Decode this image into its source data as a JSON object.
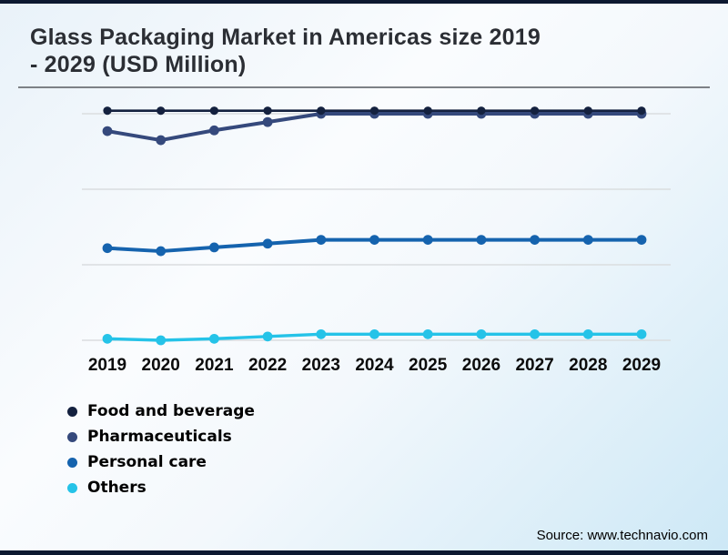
{
  "page": {
    "title_lines": [
      "Glass Packaging Market in Americas size 2019",
      "- 2029 (USD Million)"
    ],
    "source": "Source: www.technavio.com"
  },
  "legend": {
    "items": [
      {
        "label": "Food and beverage",
        "color": "#14213f"
      },
      {
        "label": "Pharmaceuticals",
        "color": "#35497c"
      },
      {
        "label": "Personal care",
        "color": "#1563ae"
      },
      {
        "label": "Others",
        "color": "#25c3e8"
      }
    ]
  },
  "chart_data": {
    "type": "line",
    "title": "Glass Packaging Market in Americas size 2019 - 2029 (USD Million)",
    "categories": [
      "2019",
      "2020",
      "2021",
      "2022",
      "2023",
      "2024",
      "2025",
      "2026",
      "2027",
      "2028",
      "2029"
    ],
    "series": [
      {
        "name": "Food and beverage",
        "color": "#14213f",
        "values": [
          3.04,
          3.04,
          3.04,
          3.04,
          3.04,
          3.04,
          3.04,
          3.04,
          3.04,
          3.04,
          3.04
        ]
      },
      {
        "name": "Pharmaceuticals",
        "color": "#35497c",
        "values": [
          2.77,
          2.65,
          2.78,
          2.89,
          3.0,
          3.0,
          3.0,
          3.0,
          3.0,
          3.0,
          3.0
        ]
      },
      {
        "name": "Personal care",
        "color": "#1563ae",
        "values": [
          1.22,
          1.18,
          1.23,
          1.28,
          1.33,
          1.33,
          1.33,
          1.33,
          1.33,
          1.33,
          1.33
        ]
      },
      {
        "name": "Others",
        "color": "#25c3e8",
        "values": [
          0.02,
          0.0,
          0.02,
          0.05,
          0.08,
          0.08,
          0.08,
          0.08,
          0.08,
          0.08,
          0.08
        ]
      }
    ],
    "xlabel": "",
    "ylabel": "",
    "ylim": [
      -0.2,
      3.3
    ],
    "gridline_values": [
      0,
      1,
      2,
      3
    ],
    "grid_color": "#dadde0",
    "grid": "horizontal only",
    "y_axis_visible": false,
    "legend_position": "bottom-left",
    "note": "y-axis is unlabeled in the chart; series values are estimated in relative gridline units (bottom gridline = 0, top gridline = 3)"
  },
  "theme": {
    "page_border": "#0c1830",
    "title_color": "#2b2e34",
    "rule_color": "#7d8186"
  }
}
